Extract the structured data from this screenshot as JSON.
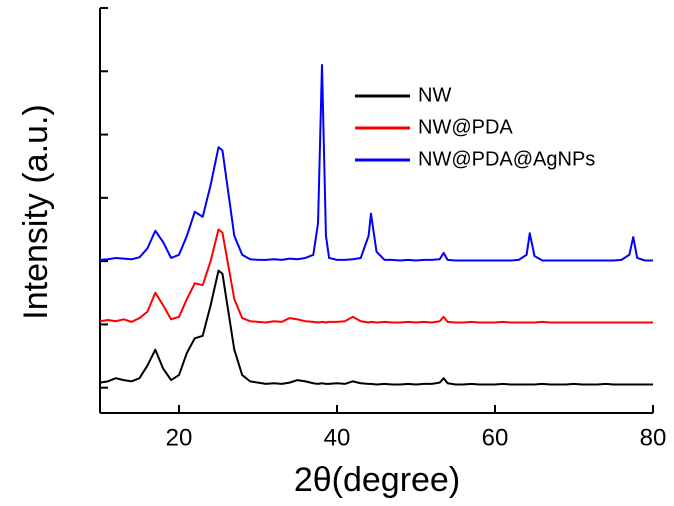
{
  "chart_data": {
    "type": "line",
    "xlabel": "2θ(degree)",
    "ylabel": "Intensity (a.u.)",
    "x": [
      10,
      11,
      12,
      13,
      14,
      15,
      16,
      17,
      18,
      19,
      20,
      21,
      22,
      23,
      24,
      25,
      25.5,
      26,
      27,
      28,
      29,
      30,
      31,
      32,
      33,
      34,
      35,
      36,
      37,
      37.6,
      38.1,
      38.6,
      39,
      40,
      41,
      42,
      43,
      44,
      44.3,
      45,
      46,
      47,
      48,
      49,
      50,
      51,
      52,
      53,
      53.5,
      54,
      55,
      56,
      57,
      58,
      59,
      60,
      61,
      62,
      63,
      64,
      64.4,
      65,
      66,
      67,
      68,
      69,
      70,
      71,
      72,
      73,
      74,
      75,
      76,
      77,
      77.5,
      78,
      79,
      80
    ],
    "series": [
      {
        "name": "NW",
        "color": "#000000",
        "values": [
          0.08,
          0.1,
          0.15,
          0.12,
          0.1,
          0.15,
          0.35,
          0.6,
          0.3,
          0.12,
          0.2,
          0.55,
          0.78,
          0.82,
          1.3,
          1.85,
          1.8,
          1.4,
          0.6,
          0.2,
          0.1,
          0.08,
          0.06,
          0.07,
          0.06,
          0.08,
          0.12,
          0.1,
          0.07,
          0.06,
          0.07,
          0.06,
          0.06,
          0.07,
          0.06,
          0.1,
          0.07,
          0.06,
          0.06,
          0.05,
          0.06,
          0.05,
          0.05,
          0.06,
          0.05,
          0.06,
          0.06,
          0.08,
          0.15,
          0.07,
          0.05,
          0.05,
          0.06,
          0.05,
          0.05,
          0.05,
          0.06,
          0.05,
          0.05,
          0.05,
          0.05,
          0.05,
          0.06,
          0.05,
          0.05,
          0.05,
          0.06,
          0.05,
          0.05,
          0.05,
          0.06,
          0.05,
          0.05,
          0.05,
          0.05,
          0.05,
          0.05,
          0.05
        ]
      },
      {
        "name": "NW@PDA",
        "color": "#ff0000",
        "values": [
          1.05,
          1.07,
          1.05,
          1.08,
          1.04,
          1.1,
          1.2,
          1.5,
          1.3,
          1.08,
          1.12,
          1.4,
          1.65,
          1.62,
          2.0,
          2.5,
          2.45,
          2.1,
          1.4,
          1.1,
          1.05,
          1.04,
          1.03,
          1.05,
          1.04,
          1.1,
          1.08,
          1.05,
          1.04,
          1.03,
          1.04,
          1.03,
          1.04,
          1.04,
          1.05,
          1.12,
          1.05,
          1.03,
          1.04,
          1.03,
          1.04,
          1.03,
          1.03,
          1.04,
          1.03,
          1.04,
          1.03,
          1.05,
          1.12,
          1.04,
          1.03,
          1.03,
          1.04,
          1.03,
          1.03,
          1.03,
          1.04,
          1.03,
          1.03,
          1.03,
          1.03,
          1.03,
          1.04,
          1.03,
          1.03,
          1.03,
          1.03,
          1.03,
          1.03,
          1.03,
          1.03,
          1.03,
          1.03,
          1.03,
          1.03,
          1.03,
          1.03,
          1.03
        ]
      },
      {
        "name": "NW@PDA@AgNPs",
        "color": "#0000ff",
        "values": [
          2.02,
          2.03,
          2.05,
          2.04,
          2.03,
          2.06,
          2.2,
          2.48,
          2.3,
          2.05,
          2.1,
          2.4,
          2.78,
          2.7,
          3.2,
          3.8,
          3.75,
          3.3,
          2.4,
          2.1,
          2.03,
          2.02,
          2.02,
          2.03,
          2.02,
          2.04,
          2.03,
          2.05,
          2.1,
          2.6,
          5.1,
          2.4,
          2.05,
          2.02,
          2.02,
          2.03,
          2.05,
          2.4,
          2.75,
          2.15,
          2.02,
          2.02,
          2.01,
          2.02,
          2.01,
          2.02,
          2.02,
          2.03,
          2.13,
          2.02,
          2.01,
          2.01,
          2.01,
          2.01,
          2.01,
          2.01,
          2.01,
          2.01,
          2.02,
          2.1,
          2.44,
          2.08,
          2.01,
          2.01,
          2.01,
          2.01,
          2.01,
          2.01,
          2.01,
          2.01,
          2.01,
          2.01,
          2.02,
          2.1,
          2.38,
          2.05,
          2.01,
          2.01
        ]
      }
    ],
    "xlim": [
      10,
      80
    ],
    "xticks": [
      20,
      40,
      60,
      80
    ],
    "ylim": [
      -0.4,
      6
    ],
    "yticks": [
      0,
      1,
      2,
      3,
      4,
      5,
      6
    ],
    "legend": "upper right"
  }
}
